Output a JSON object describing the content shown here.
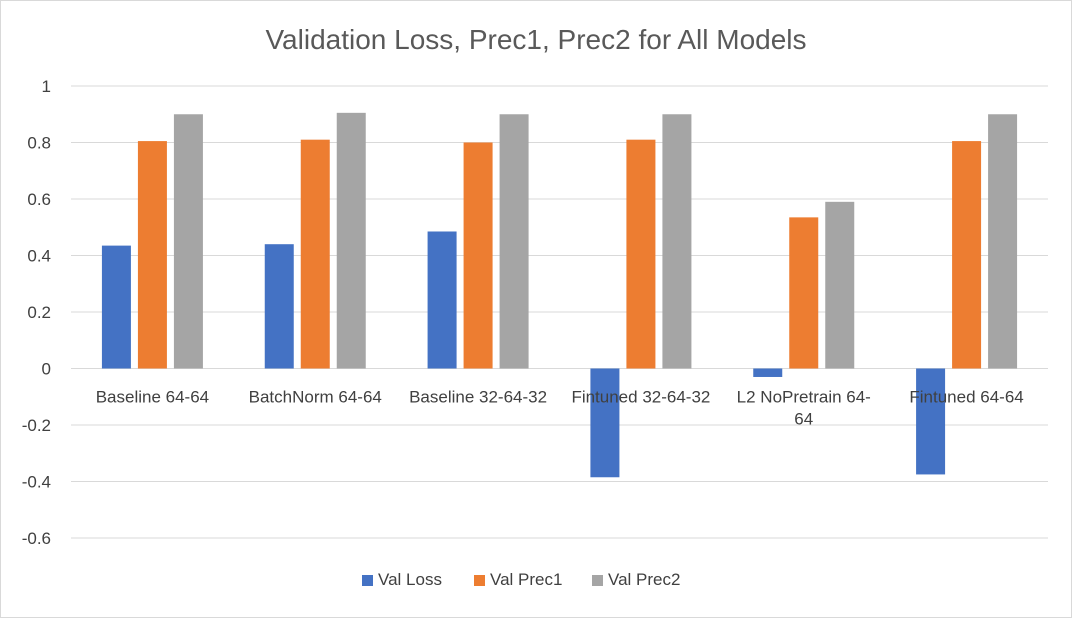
{
  "chart_data": {
    "type": "bar",
    "title": "Validation Loss, Prec1, Prec2 for All Models",
    "xlabel": "",
    "ylabel": "",
    "ylim": [
      -0.6,
      1
    ],
    "yticks": [
      1,
      0.8,
      0.6,
      0.4,
      0.2,
      0,
      -0.2,
      -0.4,
      -0.6
    ],
    "ytick_labels": [
      "1",
      "0.8",
      "0.6",
      "0.4",
      "0.2",
      "0",
      "-0.2",
      "-0.4",
      "-0.6"
    ],
    "grid": true,
    "legend_position": "bottom",
    "categories": [
      "Baseline 64-64",
      "BatchNorm 64-64",
      "Baseline 32-64-32",
      "Fintuned 32-64-32",
      "L2 NoPretrain 64-64",
      "Fintuned 64-64"
    ],
    "category_label_lines": [
      [
        "Baseline 64-64"
      ],
      [
        "BatchNorm 64-64"
      ],
      [
        "Baseline 32-64-32"
      ],
      [
        "Fintuned 32-64-32"
      ],
      [
        "L2 NoPretrain 64-",
        "64"
      ],
      [
        "Fintuned 64-64"
      ]
    ],
    "series": [
      {
        "name": "Val Loss",
        "color": "#4472c4",
        "values": [
          0.435,
          0.44,
          0.485,
          -0.385,
          -0.03,
          -0.375
        ]
      },
      {
        "name": "Val Prec1",
        "color": "#ed7d31",
        "values": [
          0.805,
          0.81,
          0.8,
          0.81,
          0.535,
          0.805
        ]
      },
      {
        "name": "Val Prec2",
        "color": "#a5a5a5",
        "values": [
          0.9,
          0.905,
          0.9,
          0.9,
          0.59,
          0.9
        ]
      }
    ]
  }
}
